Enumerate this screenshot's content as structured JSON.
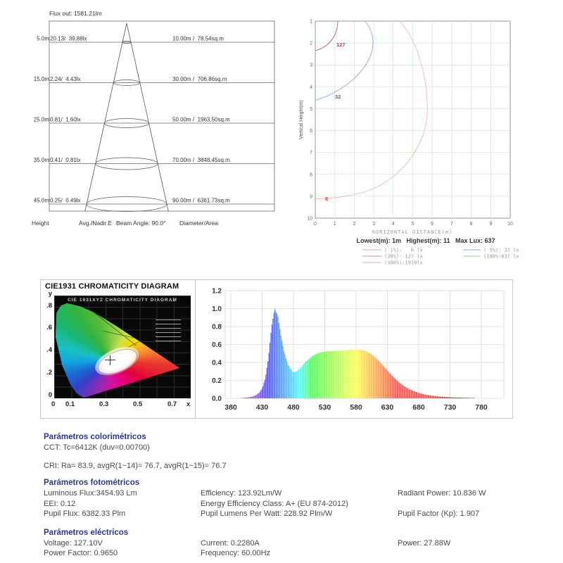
{
  "cone_diagram": {
    "flux_out": "Flux out: 1581.21lm",
    "beam_angle": "Beam Angle: 90.0°",
    "footer": {
      "height": "Height",
      "avg": "Avg./Nadir.E",
      "diameter": "Diameter/Area"
    },
    "rows": [
      {
        "height": "5.0m",
        "avg_nadir": "20.13/  39.88lx",
        "diameter_area": "10.00m /  78.54sq.m"
      },
      {
        "height": "15.0m",
        "avg_nadir": "2.24/  4.43lx",
        "diameter_area": "30.00m /  706.86sq.m"
      },
      {
        "height": "25.0m",
        "avg_nadir": "0.81/  1.60lx",
        "diameter_area": "50.00m /  1963.50sq.m"
      },
      {
        "height": "35.0m",
        "avg_nadir": "0.41/  0.81lx",
        "diameter_area": "70.00m /  3848.45sq.m"
      },
      {
        "height": "45.0m",
        "avg_nadir": "0.25/  0.49lx",
        "diameter_area": "90.00m /  6361.73sq.m"
      }
    ]
  },
  "isolux": {
    "ylabel": "Vertical Height(m)",
    "xlabel": "HORIZONTAL DISTANCE(m)",
    "summary": "Lowest(m): 1m   Highest(m): 11   Max Lux: 637",
    "labels": {
      "l127": "127",
      "l32": "32",
      "l6": "6"
    },
    "label_colors": {
      "l127": "#c03060",
      "l32": "#4466cc",
      "l6": "#e03030"
    },
    "legend": [
      {
        "label": "( 1%):   6 lx",
        "color": "#e89f9f"
      },
      {
        "label": "( 5%): 32 lx",
        "color": "#92aadc"
      },
      {
        "label": "(20%): 127 lx",
        "color": "#d990b0"
      },
      {
        "label": "(100%:637 lx",
        "color": "#9cc49c"
      },
      {
        "label": "(300%):1910lx",
        "color": "#e0a8c8"
      }
    ]
  },
  "cie": {
    "title": "CIE1931 CHROMATICITY DIAGRAM",
    "inner_title": "CIE 1931XYZ CHROMATICITY DIAGRAM",
    "y_labels": [
      "y",
      ".8",
      ".6",
      ".4",
      ".2",
      "0"
    ],
    "x_labels": [
      "0",
      "0.1",
      "0.3",
      "0.5",
      "0.7",
      "x"
    ]
  },
  "parameters": {
    "colorimetric": {
      "header": "Parámetros colorimétricos",
      "cct": "CCT: Tc=6412K (duv=0.00700)",
      "cri": "CRI: Ra= 83.9, avgR(1~14)= 76.7, avgR(1~15)= 76.7"
    },
    "photometric": {
      "header": "Parámetros fotométricos",
      "col1": [
        "Luminous Flux:3454.93 Lm",
        "EEI: 0.12",
        "Pupil Flux: 6382.33 Plm"
      ],
      "col2": [
        "Efficiency: 123.92Lm/W",
        "Energy Efficiency Class: A+ (EU 874-2012)",
        "Pupil Lumens Per Watt: 228.92 Plm/W"
      ],
      "col3": [
        "Radiant Power: 10.836 W",
        "",
        "Pupil Factor (Kp): 1.907"
      ]
    },
    "electrical": {
      "header": "Parámetros eléctricos",
      "col1": [
        "Voltage: 127.10V",
        "Power Factor: 0.9650"
      ],
      "col2": [
        "Current: 0.2280A",
        "Frequency: 60.00Hz"
      ],
      "col3": [
        "Power: 27.88W"
      ]
    }
  },
  "chart_data": [
    {
      "id": "isolux",
      "type": "line",
      "title": "iso-lux contour diagram",
      "xlabel": "HORIZONTAL DISTANCE(m)",
      "ylabel": "Vertical Height(m)",
      "xlim": [
        0,
        10
      ],
      "ylim": [
        1,
        10
      ],
      "grid": true,
      "grid_color": "#cfe8cf",
      "border_color": "#84a284",
      "legend_position": "bottom",
      "lowest_m": 1,
      "highest_m": 11,
      "max_lux": 637,
      "contours": [
        {
          "percent": "300%",
          "lux": 1910,
          "color": "#e0a8c8"
        },
        {
          "percent": "100%",
          "lux": 637,
          "color": "#9cc49c"
        },
        {
          "percent": "20%",
          "lux": 127,
          "color": "#c05070"
        },
        {
          "percent": "5%",
          "lux": 32,
          "color": "#8fa8d8"
        },
        {
          "percent": "1%",
          "lux": 6,
          "color": "#f0b6b6"
        }
      ]
    },
    {
      "id": "spectrum",
      "type": "area",
      "title": "spectral power distribution",
      "xlabel": "",
      "ylabel": "",
      "x_start": 380,
      "x_step": 5,
      "xticks": [
        380,
        430,
        480,
        530,
        580,
        630,
        680,
        730,
        780
      ],
      "ylim": [
        0,
        1.2
      ],
      "ytick_step": 0.2,
      "grid": true,
      "values": [
        0,
        0,
        0.002,
        0.003,
        0.005,
        0.008,
        0.012,
        0.02,
        0.035,
        0.06,
        0.11,
        0.22,
        0.45,
        0.8,
        1,
        0.92,
        0.7,
        0.52,
        0.4,
        0.33,
        0.29,
        0.3,
        0.33,
        0.37,
        0.41,
        0.44,
        0.47,
        0.49,
        0.505,
        0.515,
        0.52,
        0.525,
        0.528,
        0.53,
        0.53,
        0.532,
        0.535,
        0.54,
        0.543,
        0.545,
        0.545,
        0.543,
        0.538,
        0.528,
        0.512,
        0.49,
        0.46,
        0.425,
        0.39,
        0.35,
        0.31,
        0.27,
        0.235,
        0.2,
        0.17,
        0.145,
        0.122,
        0.103,
        0.087,
        0.073,
        0.061,
        0.051,
        0.043,
        0.036,
        0.03,
        0.026,
        0.022,
        0.019,
        0.016,
        0.014,
        0.012,
        0.01,
        0.009,
        0.008,
        0.007,
        0.006,
        0.005,
        0.004,
        0.004,
        0.003,
        0.003
      ]
    }
  ]
}
